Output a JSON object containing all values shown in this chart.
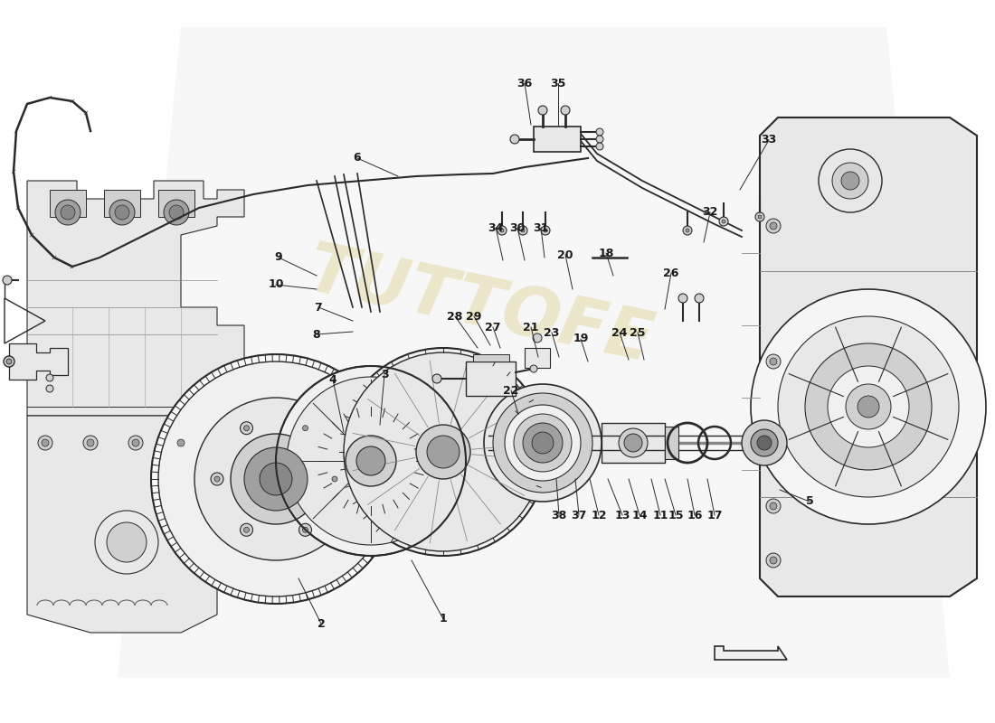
{
  "background_color": "#ffffff",
  "line_color": "#2a2a2a",
  "gray_fill": "#f0f0f0",
  "light_gray": "#e8e8e8",
  "mid_gray": "#d0d0d0",
  "dark_gray": "#a0a0a0",
  "gold_color": "#c8b400",
  "watermark_color": "#d4c060",
  "watermark_alpha": 0.3,
  "sweep_color": "#e0e0e0",
  "sweep_alpha": 0.25
}
